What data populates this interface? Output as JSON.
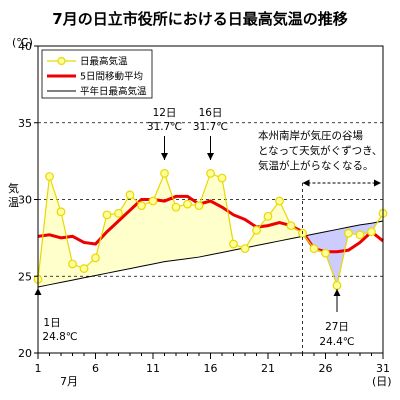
{
  "chart_data": {
    "type": "line",
    "title": "7月の日立市役所における日最高気温の推移",
    "unit_label": "(℃)",
    "ylabel": "気温",
    "xlabel_month": "7月",
    "xlabel_unit": "(日)",
    "ylim": [
      20,
      40
    ],
    "xlim": [
      1,
      31
    ],
    "yticks": [
      "20",
      "25",
      "30",
      "35",
      "40"
    ],
    "xticks": [
      "1",
      "6",
      "11",
      "16",
      "21",
      "26",
      "31"
    ],
    "grid": "dashed horizontal at 25, 30, 35",
    "legend_placement": "top-left",
    "x": [
      1,
      2,
      3,
      4,
      5,
      6,
      7,
      8,
      9,
      10,
      11,
      12,
      13,
      14,
      15,
      16,
      17,
      18,
      19,
      20,
      21,
      22,
      23,
      24,
      25,
      26,
      27,
      28,
      29,
      30,
      31
    ],
    "series": [
      {
        "name": "日最高気温",
        "color": "#e8d800",
        "marker_fill": "#ffff99",
        "values": [
          24.8,
          31.5,
          29.2,
          25.8,
          25.5,
          26.2,
          29.0,
          29.1,
          30.3,
          29.6,
          29.9,
          31.7,
          29.5,
          29.7,
          29.6,
          31.7,
          31.4,
          27.1,
          26.8,
          28.0,
          28.9,
          29.9,
          28.3,
          27.8,
          26.8,
          26.5,
          24.4,
          27.8,
          27.7,
          27.9,
          29.1
        ]
      },
      {
        "name": "5日間移動平均",
        "color": "#ee0000",
        "values": [
          27.6,
          27.7,
          27.5,
          27.6,
          27.2,
          27.1,
          27.9,
          28.6,
          29.3,
          30.0,
          30.0,
          29.9,
          30.2,
          30.2,
          29.7,
          29.9,
          29.5,
          29.0,
          28.7,
          28.2,
          28.3,
          28.5,
          28.3,
          27.9,
          26.8,
          26.6,
          26.6,
          26.7,
          27.2,
          27.9,
          27.3
        ]
      },
      {
        "name": "平年日最高気温",
        "color": "#000000",
        "values": [
          24.3,
          24.45,
          24.6,
          24.75,
          24.9,
          25.05,
          25.2,
          25.35,
          25.5,
          25.65,
          25.8,
          25.95,
          26.05,
          26.15,
          26.25,
          26.4,
          26.55,
          26.7,
          26.85,
          27.0,
          27.15,
          27.3,
          27.45,
          27.6,
          27.75,
          27.9,
          28.05,
          28.2,
          28.35,
          28.45,
          28.6
        ]
      }
    ],
    "fill_above_color": "#ffffcc",
    "fill_below_color": "#ccccff",
    "annotations": [
      {
        "date": "12日",
        "value": "31.7℃",
        "x": 12,
        "dir": "down"
      },
      {
        "date": "16日",
        "value": "31.7℃",
        "x": 16,
        "dir": "down"
      },
      {
        "date": "1日",
        "value": "24.8℃",
        "x": 1,
        "dir": "up"
      },
      {
        "date": "27日",
        "value": "24.4℃",
        "x": 27,
        "dir": "up"
      }
    ],
    "note_lines": [
      "本州南岸が気圧の谷場",
      "となって天気がぐずつき、",
      "気温が上がらなくなる。"
    ],
    "note_range": [
      24,
      31
    ]
  }
}
